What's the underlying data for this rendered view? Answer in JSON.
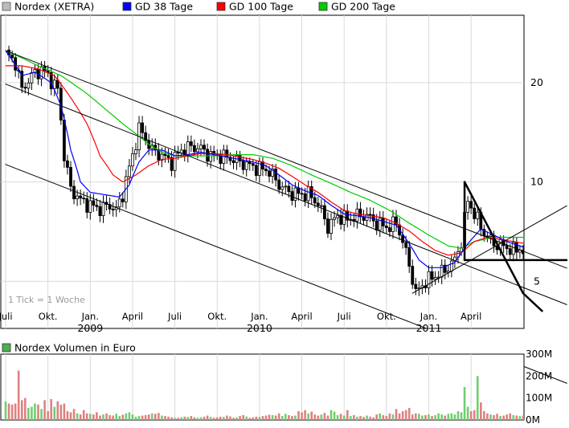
{
  "legend": [
    {
      "label": "Nordex (XETRA)",
      "color": "#bbbbbb"
    },
    {
      "label": "GD 38 Tage",
      "color": "#0000ff"
    },
    {
      "label": "GD 100 Tage",
      "color": "#ff0000"
    },
    {
      "label": "GD 200 Tage",
      "color": "#00cc00"
    }
  ],
  "note": "1 Tick = 1 Woche",
  "volume_legend": {
    "label": "Nordex Volumen in Euro",
    "color": "#4caf50"
  },
  "chart_data": [
    {
      "type": "line",
      "y_scale": "log",
      "ylim": [
        3.6,
        32
      ],
      "yticks": [
        {
          "value": 5,
          "label": "5"
        },
        {
          "value": 10,
          "label": "10"
        },
        {
          "value": 20,
          "label": "20"
        }
      ],
      "xticks": [
        {
          "week": 0,
          "label": "Juli"
        },
        {
          "week": 13,
          "label": "Okt."
        },
        {
          "week": 26,
          "label": "Jan."
        },
        {
          "week": 39,
          "label": "April"
        },
        {
          "week": 52,
          "label": "Juli"
        },
        {
          "week": 65,
          "label": "Okt."
        },
        {
          "week": 78,
          "label": "Jan."
        },
        {
          "week": 91,
          "label": "April"
        },
        {
          "week": 104,
          "label": "Juli"
        },
        {
          "week": 117,
          "label": "Okt."
        },
        {
          "week": 130,
          "label": "Jan."
        },
        {
          "week": 143,
          "label": "April"
        }
      ],
      "year_labels": [
        {
          "week": 26,
          "label": "2009"
        },
        {
          "week": 78,
          "label": "2010"
        },
        {
          "week": 130,
          "label": "2011"
        }
      ],
      "close_anchors": [
        [
          0,
          24.5
        ],
        [
          3,
          23
        ],
        [
          5,
          19
        ],
        [
          8,
          21
        ],
        [
          11,
          22
        ],
        [
          13,
          21
        ],
        [
          16,
          19
        ],
        [
          18,
          12
        ],
        [
          20,
          9.5
        ],
        [
          23,
          8.8
        ],
        [
          26,
          8.5
        ],
        [
          29,
          8.3
        ],
        [
          32,
          8.5
        ],
        [
          34,
          8.2
        ],
        [
          36,
          9.2
        ],
        [
          39,
          12
        ],
        [
          41,
          14.5
        ],
        [
          43,
          13.5
        ],
        [
          45,
          12.5
        ],
        [
          48,
          12
        ],
        [
          51,
          11.5
        ],
        [
          54,
          12.5
        ],
        [
          57,
          12.8
        ],
        [
          60,
          12.6
        ],
        [
          63,
          12
        ],
        [
          66,
          12
        ],
        [
          69,
          11.8
        ],
        [
          72,
          11.5
        ],
        [
          75,
          11.2
        ],
        [
          78,
          11
        ],
        [
          81,
          10.8
        ],
        [
          84,
          9.8
        ],
        [
          87,
          9.3
        ],
        [
          90,
          9.2
        ],
        [
          93,
          9.2
        ],
        [
          96,
          8.6
        ],
        [
          99,
          7.3
        ],
        [
          102,
          7.9
        ],
        [
          105,
          7.7
        ],
        [
          108,
          7.9
        ],
        [
          111,
          7.9
        ],
        [
          114,
          7.5
        ],
        [
          117,
          7.3
        ],
        [
          120,
          7.5
        ],
        [
          122,
          6.6
        ],
        [
          124,
          5.6
        ],
        [
          126,
          4.6
        ],
        [
          129,
          5
        ],
        [
          132,
          5.2
        ],
        [
          135,
          5.4
        ],
        [
          138,
          5.8
        ],
        [
          140,
          6.6
        ],
        [
          142,
          8.8
        ],
        [
          144,
          8
        ],
        [
          147,
          7
        ],
        [
          150,
          6.5
        ],
        [
          153,
          6.4
        ],
        [
          156,
          6.2
        ],
        [
          158,
          6.3
        ],
        [
          160,
          6
        ]
      ],
      "series": [
        {
          "name": "Nordex (XETRA)",
          "color": "#444444"
        },
        {
          "name": "GD 38 Tage",
          "color": "#0000ff"
        },
        {
          "name": "GD 100 Tage",
          "color": "#ff0000"
        },
        {
          "name": "GD 200 Tage",
          "color": "#00cc00"
        }
      ],
      "gd38_anchors": [
        [
          0,
          25
        ],
        [
          5,
          21
        ],
        [
          9,
          21.5
        ],
        [
          14,
          20
        ],
        [
          17,
          17
        ],
        [
          20,
          12.5
        ],
        [
          23,
          10
        ],
        [
          26,
          9.3
        ],
        [
          29,
          9.2
        ],
        [
          32,
          9.1
        ],
        [
          35,
          9
        ],
        [
          38,
          9.8
        ],
        [
          41,
          11.5
        ],
        [
          44,
          12.5
        ],
        [
          48,
          12.5
        ],
        [
          52,
          12
        ],
        [
          56,
          12.1
        ],
        [
          60,
          12.3
        ],
        [
          64,
          12.1
        ],
        [
          68,
          11.9
        ],
        [
          72,
          11.7
        ],
        [
          76,
          11.5
        ],
        [
          80,
          11.2
        ],
        [
          84,
          10.5
        ],
        [
          88,
          9.8
        ],
        [
          92,
          9.4
        ],
        [
          96,
          9.1
        ],
        [
          100,
          8.5
        ],
        [
          104,
          8
        ],
        [
          108,
          7.9
        ],
        [
          112,
          7.8
        ],
        [
          116,
          7.6
        ],
        [
          120,
          7.4
        ],
        [
          124,
          6.5
        ],
        [
          127,
          5.8
        ],
        [
          130,
          5.5
        ],
        [
          134,
          5.5
        ],
        [
          138,
          5.7
        ],
        [
          142,
          6.5
        ],
        [
          146,
          7.2
        ],
        [
          150,
          6.9
        ],
        [
          154,
          6.6
        ],
        [
          158,
          6.4
        ],
        [
          160,
          6.3
        ]
      ],
      "gd100_anchors": [
        [
          0,
          22.5
        ],
        [
          5,
          22.5
        ],
        [
          10,
          22
        ],
        [
          15,
          21
        ],
        [
          20,
          18
        ],
        [
          25,
          15
        ],
        [
          29,
          12
        ],
        [
          33,
          10.5
        ],
        [
          36,
          10
        ],
        [
          40,
          10.5
        ],
        [
          44,
          11.2
        ],
        [
          48,
          11.7
        ],
        [
          52,
          11.8
        ],
        [
          56,
          12
        ],
        [
          60,
          12.2
        ],
        [
          64,
          12.2
        ],
        [
          68,
          12.1
        ],
        [
          72,
          11.9
        ],
        [
          76,
          11.7
        ],
        [
          80,
          11.4
        ],
        [
          84,
          11
        ],
        [
          88,
          10.4
        ],
        [
          92,
          9.8
        ],
        [
          96,
          9.3
        ],
        [
          100,
          8.7
        ],
        [
          104,
          8.2
        ],
        [
          108,
          8
        ],
        [
          112,
          7.9
        ],
        [
          116,
          7.8
        ],
        [
          120,
          7.5
        ],
        [
          124,
          7.1
        ],
        [
          128,
          6.6
        ],
        [
          132,
          6.2
        ],
        [
          136,
          6
        ],
        [
          140,
          6.1
        ],
        [
          144,
          6.6
        ],
        [
          148,
          6.8
        ],
        [
          152,
          6.7
        ],
        [
          156,
          6.6
        ],
        [
          160,
          6.5
        ]
      ],
      "gd200_anchors": [
        [
          0,
          25
        ],
        [
          10,
          22.5
        ],
        [
          17,
          21
        ],
        [
          25,
          18.5
        ],
        [
          31,
          16.5
        ],
        [
          36,
          15
        ],
        [
          40,
          14
        ],
        [
          44,
          13
        ],
        [
          48,
          12.3
        ],
        [
          52,
          12
        ],
        [
          58,
          12
        ],
        [
          64,
          12
        ],
        [
          70,
          12.1
        ],
        [
          76,
          12.1
        ],
        [
          82,
          11.8
        ],
        [
          88,
          11.2
        ],
        [
          94,
          10.5
        ],
        [
          100,
          9.9
        ],
        [
          106,
          9.3
        ],
        [
          112,
          8.8
        ],
        [
          118,
          8.2
        ],
        [
          124,
          7.5
        ],
        [
          130,
          6.9
        ],
        [
          136,
          6.4
        ],
        [
          140,
          6.3
        ],
        [
          144,
          6.6
        ],
        [
          150,
          6.8
        ],
        [
          156,
          6.8
        ],
        [
          160,
          6.8
        ]
      ],
      "trendlines": [
        {
          "color": "#000000",
          "width": 1,
          "from": [
            0,
            25
          ],
          "to": [
            166,
            5.8
          ]
        },
        {
          "color": "#000000",
          "width": 1,
          "from": [
            0,
            19.8
          ],
          "to": [
            166,
            4.5
          ]
        },
        {
          "color": "#000000",
          "width": 1,
          "from": [
            0,
            11.3
          ],
          "to": [
            166,
            2.6
          ]
        },
        {
          "color": "#000000",
          "width": 1,
          "from": [
            125,
            4.6
          ],
          "to": [
            166,
            7.8
          ]
        },
        {
          "color": "#000000",
          "width": 2.5,
          "from": [
            141,
            5.8
          ],
          "to": [
            166,
            5.8
          ]
        },
        {
          "color": "#000000",
          "width": 2.5,
          "from": [
            141,
            10
          ],
          "to": [
            141,
            5.8
          ]
        },
        {
          "color": "#000000",
          "width": 2.5,
          "from": [
            141,
            10
          ],
          "to": [
            159,
            4.6
          ]
        }
      ]
    },
    {
      "type": "bar",
      "title": "Nordex Volumen in Euro",
      "ylim": [
        0,
        300
      ],
      "yticks": [
        {
          "value": 0,
          "label": "0M"
        },
        {
          "value": 100,
          "label": "100M"
        },
        {
          "value": 200,
          "label": "200M"
        },
        {
          "value": 300,
          "label": "300M"
        }
      ],
      "values": [
        85,
        75,
        70,
        75,
        225,
        90,
        100,
        55,
        60,
        75,
        70,
        50,
        90,
        40,
        95,
        60,
        85,
        70,
        75,
        40,
        35,
        50,
        30,
        25,
        45,
        30,
        28,
        25,
        35,
        20,
        25,
        30,
        22,
        20,
        28,
        18,
        24,
        30,
        35,
        25,
        15,
        18,
        20,
        22,
        25,
        30,
        28,
        32,
        20,
        18,
        15,
        12,
        10,
        10,
        12,
        15,
        14,
        18,
        12,
        10,
        12,
        15,
        20,
        14,
        10,
        12,
        15,
        14,
        20,
        16,
        10,
        12,
        18,
        22,
        16,
        10,
        12,
        15,
        14,
        18,
        20,
        24,
        22,
        20,
        30,
        18,
        28,
        22,
        18,
        20,
        40,
        35,
        45,
        30,
        38,
        25,
        20,
        25,
        32,
        20,
        45,
        38,
        22,
        28,
        20,
        45,
        18,
        22,
        15,
        18,
        14,
        20,
        15,
        12,
        25,
        30,
        22,
        18,
        30,
        25,
        50,
        30,
        40,
        45,
        55,
        25,
        30,
        28,
        20,
        22,
        25,
        18,
        22,
        30,
        25,
        20,
        28,
        30,
        25,
        40,
        35,
        150,
        60,
        40,
        45,
        200,
        80,
        40,
        30,
        25,
        22,
        28,
        18,
        20,
        25,
        30,
        22,
        20,
        18,
        20,
        35
      ]
    }
  ]
}
